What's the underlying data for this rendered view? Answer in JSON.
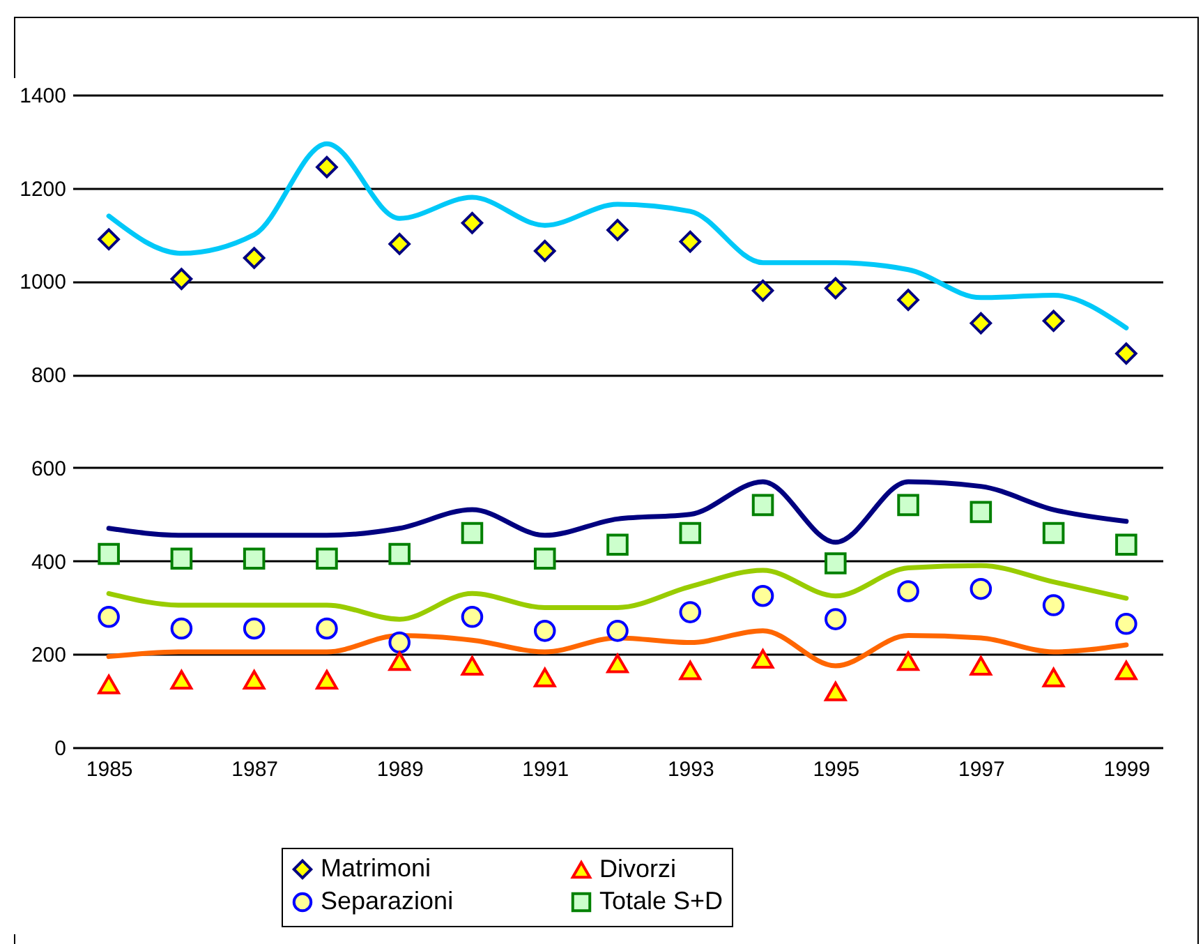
{
  "chart_data": {
    "type": "line",
    "categories": [
      "1985",
      null,
      "1987",
      null,
      "1989",
      null,
      "1991",
      null,
      "1993",
      null,
      "1995",
      null,
      "1997",
      null,
      "1999"
    ],
    "ylim": [
      0,
      1400
    ],
    "yticks": [
      0,
      200,
      400,
      600,
      800,
      1000,
      1200,
      1400
    ],
    "grid": "y",
    "legend": "bottom",
    "series": [
      {
        "color": "#00c8f8",
        "marker": "none",
        "values": [
          1140,
          1060,
          1100,
          1295,
          1135,
          1180,
          1120,
          1165,
          1150,
          1040,
          1040,
          1025,
          965,
          970,
          900
        ]
      },
      {
        "color": "#99cc00",
        "marker": "none",
        "values": [
          330,
          305,
          305,
          305,
          275,
          330,
          300,
          300,
          345,
          380,
          325,
          385,
          390,
          355,
          320
        ]
      },
      {
        "color": "#ff6600",
        "marker": "none",
        "values": [
          195,
          205,
          205,
          205,
          240,
          230,
          205,
          235,
          225,
          250,
          175,
          240,
          235,
          205,
          220
        ]
      },
      {
        "color": "#000080",
        "marker": "none",
        "values": [
          470,
          455,
          455,
          455,
          470,
          510,
          455,
          490,
          500,
          570,
          440,
          570,
          560,
          510,
          485
        ]
      },
      {
        "type": "scatter",
        "name": "Matrimoni",
        "color": "#ffff00",
        "marker": "diamond",
        "values": [
          1090,
          1005,
          1050,
          1245,
          1080,
          1125,
          1065,
          1110,
          1085,
          980,
          985,
          960,
          910,
          915,
          845
        ]
      },
      {
        "type": "scatter",
        "name": "Separazioni",
        "color": "#ffff99",
        "marker": "circle",
        "values": [
          280,
          255,
          255,
          255,
          225,
          280,
          250,
          250,
          290,
          325,
          275,
          335,
          340,
          305,
          265
        ]
      },
      {
        "type": "scatter",
        "name": "Divorzi",
        "color": "#ffff00",
        "marker": "triangle",
        "values": [
          135,
          145,
          145,
          145,
          185,
          175,
          150,
          180,
          165,
          190,
          120,
          185,
          175,
          150,
          165
        ]
      },
      {
        "type": "scatter",
        "name": "Totale S+D",
        "color": "#ccffcc",
        "marker": "square",
        "values": [
          415,
          405,
          405,
          405,
          415,
          460,
          405,
          435,
          460,
          520,
          395,
          520,
          505,
          460,
          435
        ]
      }
    ]
  }
}
